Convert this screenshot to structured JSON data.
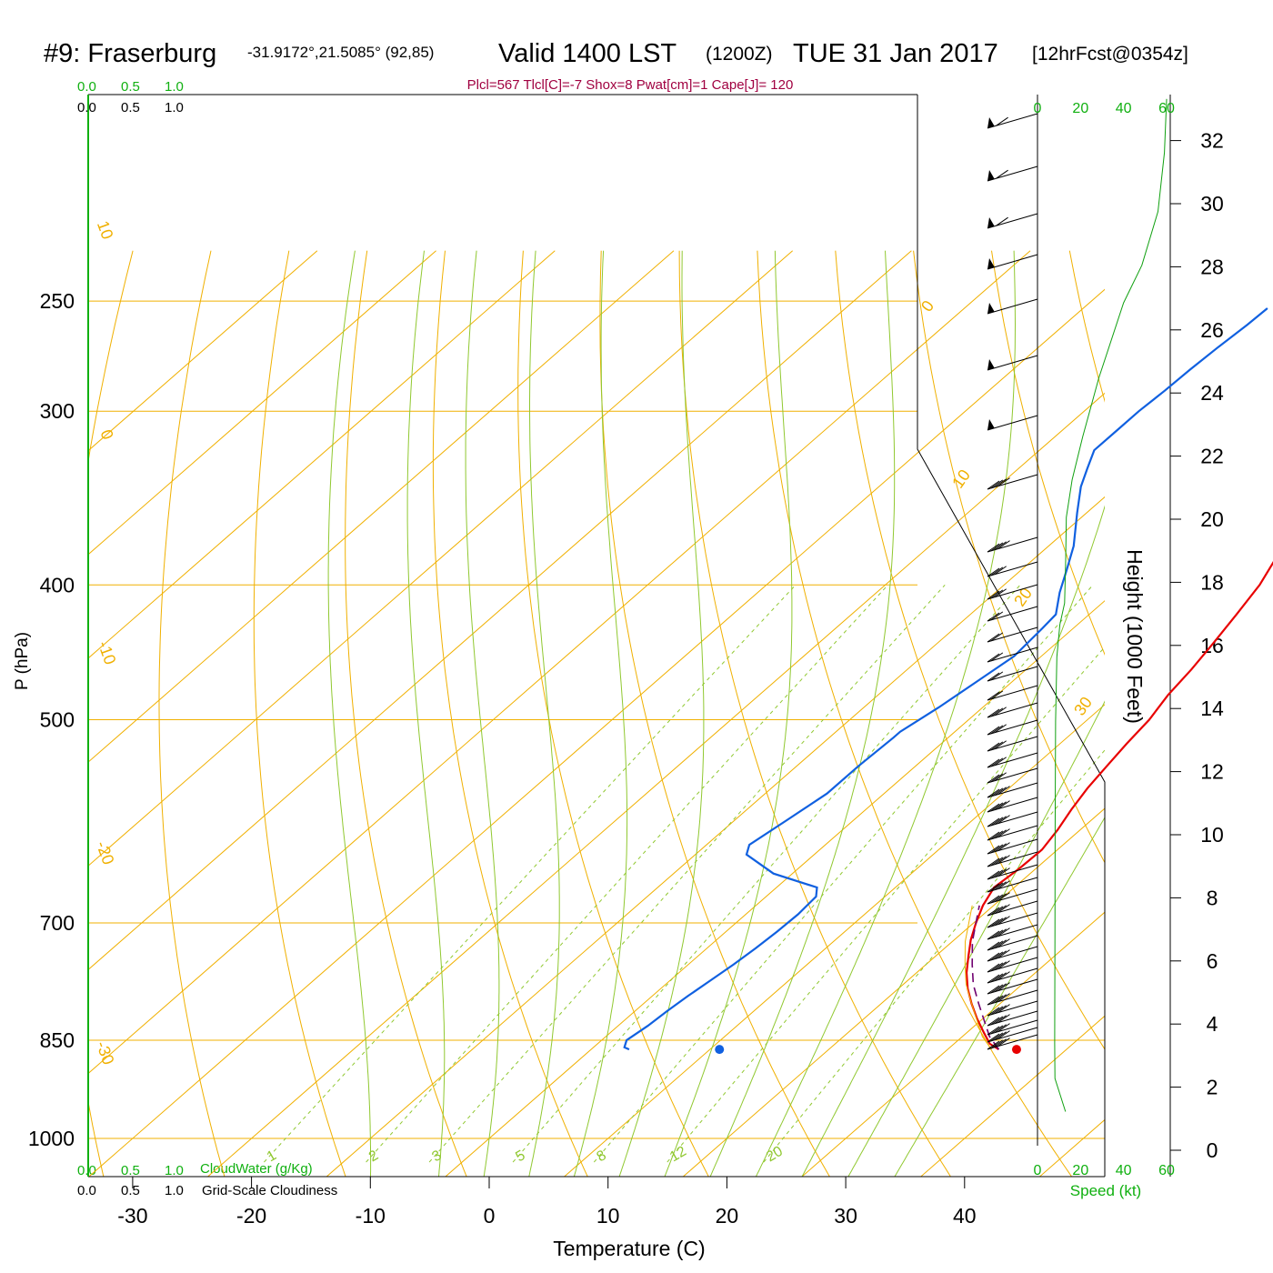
{
  "header": {
    "station": "#9: Fraserburg",
    "coords": "-31.9172°,21.5085° (92,85)",
    "valid_prefix": "Valid 1400 LST",
    "utc": "(1200Z)",
    "date": "TUE 31 Jan 2017",
    "forecast": "[12hrFcst@0354z]",
    "indices": "Plcl=567 Tlcl[C]=-7 Shox=8 Pwat[cm]=1 Cape[J]= 120"
  },
  "colors": {
    "temperature": "#e80000",
    "dewpoint": "#1060e0",
    "isotherm": "#f0b000",
    "dry_adiabat": "#f0b000",
    "moist_adiabat": "#90c830",
    "mixing_ratio": "#90c830",
    "parcel": "#700070",
    "height_profile": "#10a010",
    "green_label": "#10b010",
    "index_text": "#a00040"
  },
  "cloud_scale": {
    "cloudwater_ticks": [
      "0.0",
      "0.5",
      "1.0"
    ],
    "cloudwater_label": "CloudWater (g/Kg)",
    "cloudiness_ticks": [
      "0.0",
      "0.5",
      "1.0"
    ],
    "cloudiness_label": "Grid-Scale Cloudiness"
  },
  "chart_data": {
    "type": "line",
    "title": "#9: Fraserburg -31.9172°,21.5085° (92,85) Valid 1400 LST (1200Z) TUE 31 Jan 2017 [12hrFcst@0354z]",
    "xlabel": "Temperature (C)",
    "ylabel": "P (hPa)",
    "xlim": [
      -33,
      46
    ],
    "ylim": [
      1000,
      250
    ],
    "x_ticks": [
      -30,
      -20,
      -10,
      0,
      10,
      20,
      30,
      40
    ],
    "y_ticks": [
      250,
      300,
      400,
      500,
      700,
      850,
      1000
    ],
    "isotherms": [
      -100,
      -90,
      -80,
      -70,
      -60,
      -50,
      -40,
      -30,
      -20,
      -10,
      0,
      10,
      20,
      30,
      40,
      50
    ],
    "dry_adiabat_labels": [
      "10",
      "0",
      "-10",
      "-20",
      "-30",
      "0",
      "10",
      "20",
      "30"
    ],
    "mixing_ratio_labels": [
      "1",
      "2",
      "3",
      "5",
      "8",
      "12",
      "20"
    ],
    "series": [
      {
        "name": "Temperature",
        "points": [
          [
            34.3,
            863
          ],
          [
            33,
            855
          ],
          [
            31.5,
            840
          ],
          [
            29.5,
            820
          ],
          [
            27.6,
            800
          ],
          [
            25.8,
            780
          ],
          [
            24.2,
            760
          ],
          [
            22.8,
            740
          ],
          [
            21.4,
            720
          ],
          [
            20.2,
            700
          ],
          [
            19.1,
            680
          ],
          [
            18.3,
            660
          ],
          [
            18.6,
            640
          ],
          [
            18.7,
            620
          ],
          [
            18.1,
            600
          ],
          [
            17.3,
            580
          ],
          [
            16.6,
            560
          ],
          [
            16.1,
            540
          ],
          [
            15.6,
            520
          ],
          [
            15.2,
            500
          ],
          [
            14.4,
            480
          ],
          [
            13.9,
            460
          ],
          [
            13.2,
            440
          ],
          [
            12.4,
            420
          ],
          [
            11.5,
            400
          ],
          [
            10.1,
            380
          ],
          [
            8.7,
            360
          ],
          [
            7.0,
            340
          ],
          [
            5.4,
            320
          ],
          [
            3.6,
            300
          ],
          [
            1.8,
            280
          ],
          [
            -0.1,
            260
          ],
          [
            -1.2,
            250
          ]
        ]
      },
      {
        "name": "Dewpoint",
        "points": [
          [
            3.2,
            863
          ],
          [
            2.6,
            860
          ],
          [
            2.1,
            850
          ],
          [
            2.5,
            830
          ],
          [
            2.7,
            810
          ],
          [
            3.0,
            790
          ],
          [
            3.4,
            770
          ],
          [
            3.8,
            750
          ],
          [
            4.1,
            730
          ],
          [
            4.3,
            710
          ],
          [
            4.4,
            690
          ],
          [
            4.2,
            670
          ],
          [
            3.4,
            660
          ],
          [
            -1.6,
            645
          ],
          [
            -5.7,
            625
          ],
          [
            -6.4,
            615
          ],
          [
            -5.6,
            590
          ],
          [
            -4.8,
            565
          ],
          [
            -4.8,
            540
          ],
          [
            -4.6,
            515
          ],
          [
            -4.6,
            510
          ],
          [
            -3.7,
            490
          ],
          [
            -3.0,
            470
          ],
          [
            -2.3,
            450
          ],
          [
            -2.6,
            430
          ],
          [
            -2.8,
            420
          ],
          [
            -4.6,
            405
          ],
          [
            -6.2,
            390
          ],
          [
            -7.9,
            375
          ],
          [
            -10.8,
            355
          ],
          [
            -13.0,
            340
          ],
          [
            -14.2,
            330
          ],
          [
            -15.4,
            320
          ],
          [
            -15.4,
            310
          ],
          [
            -15.4,
            300
          ],
          [
            -15.2,
            290
          ],
          [
            -15.1,
            280
          ],
          [
            -14.9,
            270
          ],
          [
            -14.6,
            260
          ],
          [
            -14.5,
            253
          ]
        ]
      },
      {
        "name": "Parcel",
        "points": [
          [
            34.3,
            863
          ],
          [
            32.3,
            845
          ],
          [
            30.5,
            825
          ],
          [
            28.2,
            800
          ],
          [
            25.9,
            775
          ],
          [
            23.9,
            750
          ],
          [
            21.7,
            722
          ],
          [
            19.5,
            690
          ],
          [
            18.8,
            680
          ]
        ]
      }
    ],
    "surface_dewpoint_marker": [
      10.8,
      863
    ],
    "surface_temperature_marker": [
      35.8,
      863
    ],
    "wind_speed_axis": {
      "label": "Speed (kt)",
      "ticks": [
        "0",
        "20",
        "40",
        "60"
      ],
      "max": 60
    },
    "height_axis": {
      "label": "Height (1000 Feet)",
      "ticks": [
        0,
        2,
        4,
        6,
        8,
        10,
        12,
        14,
        16,
        18,
        20,
        22,
        24,
        26,
        28,
        30,
        32
      ],
      "max": 34
    },
    "height_profile": [
      [
        13,
        0.36
      ],
      [
        8.1,
        0.67
      ],
      [
        8.0,
        1.0
      ],
      [
        8.1,
        2.0
      ],
      [
        8.2,
        3.0
      ],
      [
        8.4,
        4.0
      ],
      [
        9.0,
        4.6
      ],
      [
        10.4,
        4.9
      ],
      [
        12.6,
        5.1
      ],
      [
        13.1,
        5.5
      ],
      [
        13.4,
        5.9
      ],
      [
        16.1,
        6.25
      ],
      [
        21.0,
        6.65
      ],
      [
        28.5,
        7.2
      ],
      [
        40,
        7.9
      ],
      [
        48.5,
        8.25
      ],
      [
        56,
        8.75
      ],
      [
        59,
        9.3
      ],
      [
        60,
        9.8
      ]
    ],
    "wind_barbs": [
      {
        "y": 1138,
        "fl": 4,
        "pn": 0
      },
      {
        "y": 1130,
        "fl": 4,
        "pn": 0
      },
      {
        "y": 1122,
        "fl": 4,
        "pn": 0
      },
      {
        "y": 1112,
        "fl": 4,
        "pn": 0
      },
      {
        "y": 1101,
        "fl": 4,
        "pn": 0
      },
      {
        "y": 1089,
        "fl": 4,
        "pn": 0
      },
      {
        "y": 1077,
        "fl": 4,
        "pn": 0
      },
      {
        "y": 1065,
        "fl": 4,
        "pn": 0
      },
      {
        "y": 1053,
        "fl": 4,
        "pn": 0
      },
      {
        "y": 1041,
        "fl": 4,
        "pn": 0
      },
      {
        "y": 1029,
        "fl": 4,
        "pn": 0
      },
      {
        "y": 1017,
        "fl": 4,
        "pn": 0
      },
      {
        "y": 1004,
        "fl": 4,
        "pn": 0
      },
      {
        "y": 991,
        "fl": 4,
        "pn": 0
      },
      {
        "y": 978,
        "fl": 4,
        "pn": 0
      },
      {
        "y": 965,
        "fl": 4,
        "pn": 0
      },
      {
        "y": 951,
        "fl": 4,
        "pn": 0
      },
      {
        "y": 937,
        "fl": 4,
        "pn": 0
      },
      {
        "y": 923,
        "fl": 4,
        "pn": 0
      },
      {
        "y": 908,
        "fl": 4,
        "pn": 0
      },
      {
        "y": 893,
        "fl": 4,
        "pn": 0
      },
      {
        "y": 877,
        "fl": 4,
        "pn": 0
      },
      {
        "y": 861,
        "fl": 4,
        "pn": 0
      },
      {
        "y": 845,
        "fl": 3,
        "pn": 0
      },
      {
        "y": 828,
        "fl": 3,
        "pn": 0
      },
      {
        "y": 810,
        "fl": 3,
        "pn": 0
      },
      {
        "y": 792,
        "fl": 3,
        "pn": 0
      },
      {
        "y": 773,
        "fl": 3,
        "pn": 0
      },
      {
        "y": 754,
        "fl": 2,
        "pn": 0
      },
      {
        "y": 733,
        "fl": 2,
        "pn": 0
      },
      {
        "y": 712,
        "fl": 2,
        "pn": 0
      },
      {
        "y": 690,
        "fl": 2,
        "pn": 0
      },
      {
        "y": 667,
        "fl": 2,
        "pn": 0
      },
      {
        "y": 643,
        "fl": 3,
        "pn": 0
      },
      {
        "y": 618,
        "fl": 3,
        "pn": 0
      },
      {
        "y": 591,
        "fl": 4,
        "pn": 0
      },
      {
        "y": 522,
        "fl": 4,
        "pn": 0
      },
      {
        "y": 457,
        "fl": 0,
        "pn": 1
      },
      {
        "y": 391,
        "fl": 0,
        "pn": 1
      },
      {
        "y": 329,
        "fl": 0,
        "pn": 1
      },
      {
        "y": 280,
        "fl": 0,
        "pn": 1
      },
      {
        "y": 235,
        "fl": 1,
        "pn": 1
      },
      {
        "y": 183,
        "fl": 1,
        "pn": 1
      },
      {
        "y": 125,
        "fl": 1,
        "pn": 1
      }
    ]
  }
}
